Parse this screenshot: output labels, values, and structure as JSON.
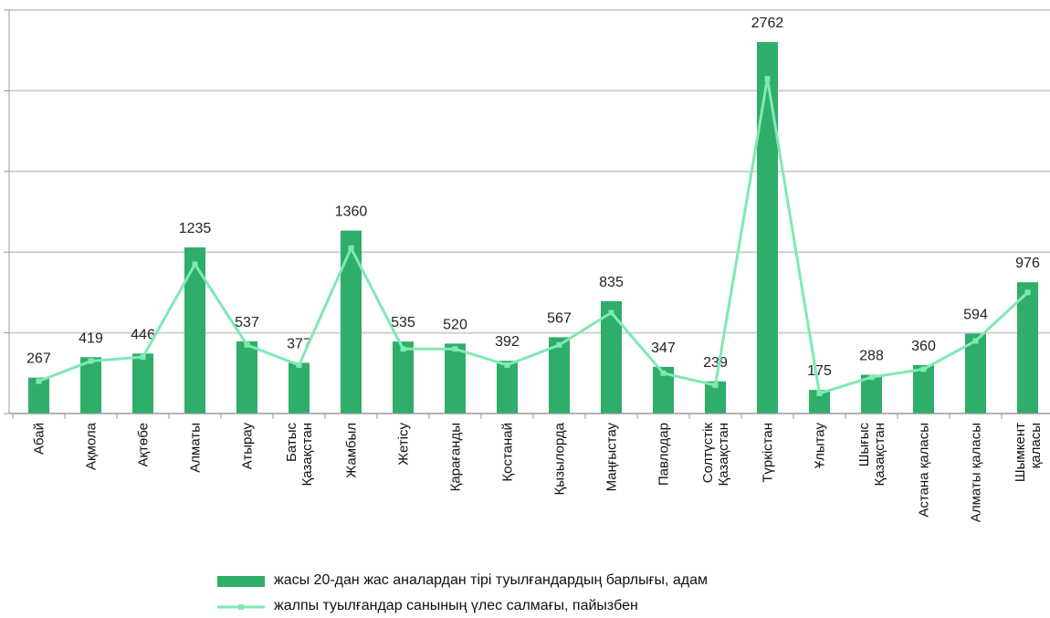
{
  "chart_data": {
    "type": "bar_line",
    "categories": [
      "Абай",
      "Ақмола",
      "Ақтөбе",
      "Алматы",
      "Атырау",
      "Батыс\nҚазақстан",
      "Жамбыл",
      "Жетісу",
      "Қарағанды",
      "Қостанай",
      "Қызылорда",
      "Маңғыстау",
      "Павлодар",
      "Солтүстік\nҚазақстан",
      "Түркістан",
      "Ұлытау",
      "Шығыс\nҚазақстан",
      "Астана қаласы",
      "Алматы қаласы",
      "Шымкент\nқаласы"
    ],
    "series": [
      {
        "name": "жасы 20-дан жас аналардан тірі туылғандардың барлығы, адам",
        "type": "bar",
        "color": "#2eae69",
        "values": [
          267,
          419,
          446,
          1235,
          537,
          377,
          1360,
          535,
          520,
          392,
          567,
          835,
          347,
          239,
          2762,
          175,
          288,
          360,
          594,
          976
        ]
      },
      {
        "name": "жалпы туылғандар санының үлес салмағы, пайызбен",
        "type": "line",
        "axis": "y2",
        "color": "#7fe9b3",
        "values": [
          0.8,
          1.3,
          1.4,
          3.7,
          1.7,
          1.2,
          4.1,
          1.6,
          1.6,
          1.2,
          1.7,
          2.5,
          1.0,
          0.7,
          8.3,
          0.5,
          0.9,
          1.1,
          1.8,
          3.0
        ]
      }
    ],
    "ylim": [
      0,
      3000
    ],
    "yticks": [
      0,
      600,
      1200,
      1800,
      2400,
      3000
    ],
    "y2lim": [
      0,
      10
    ],
    "grid": true,
    "legend": "bottom"
  }
}
